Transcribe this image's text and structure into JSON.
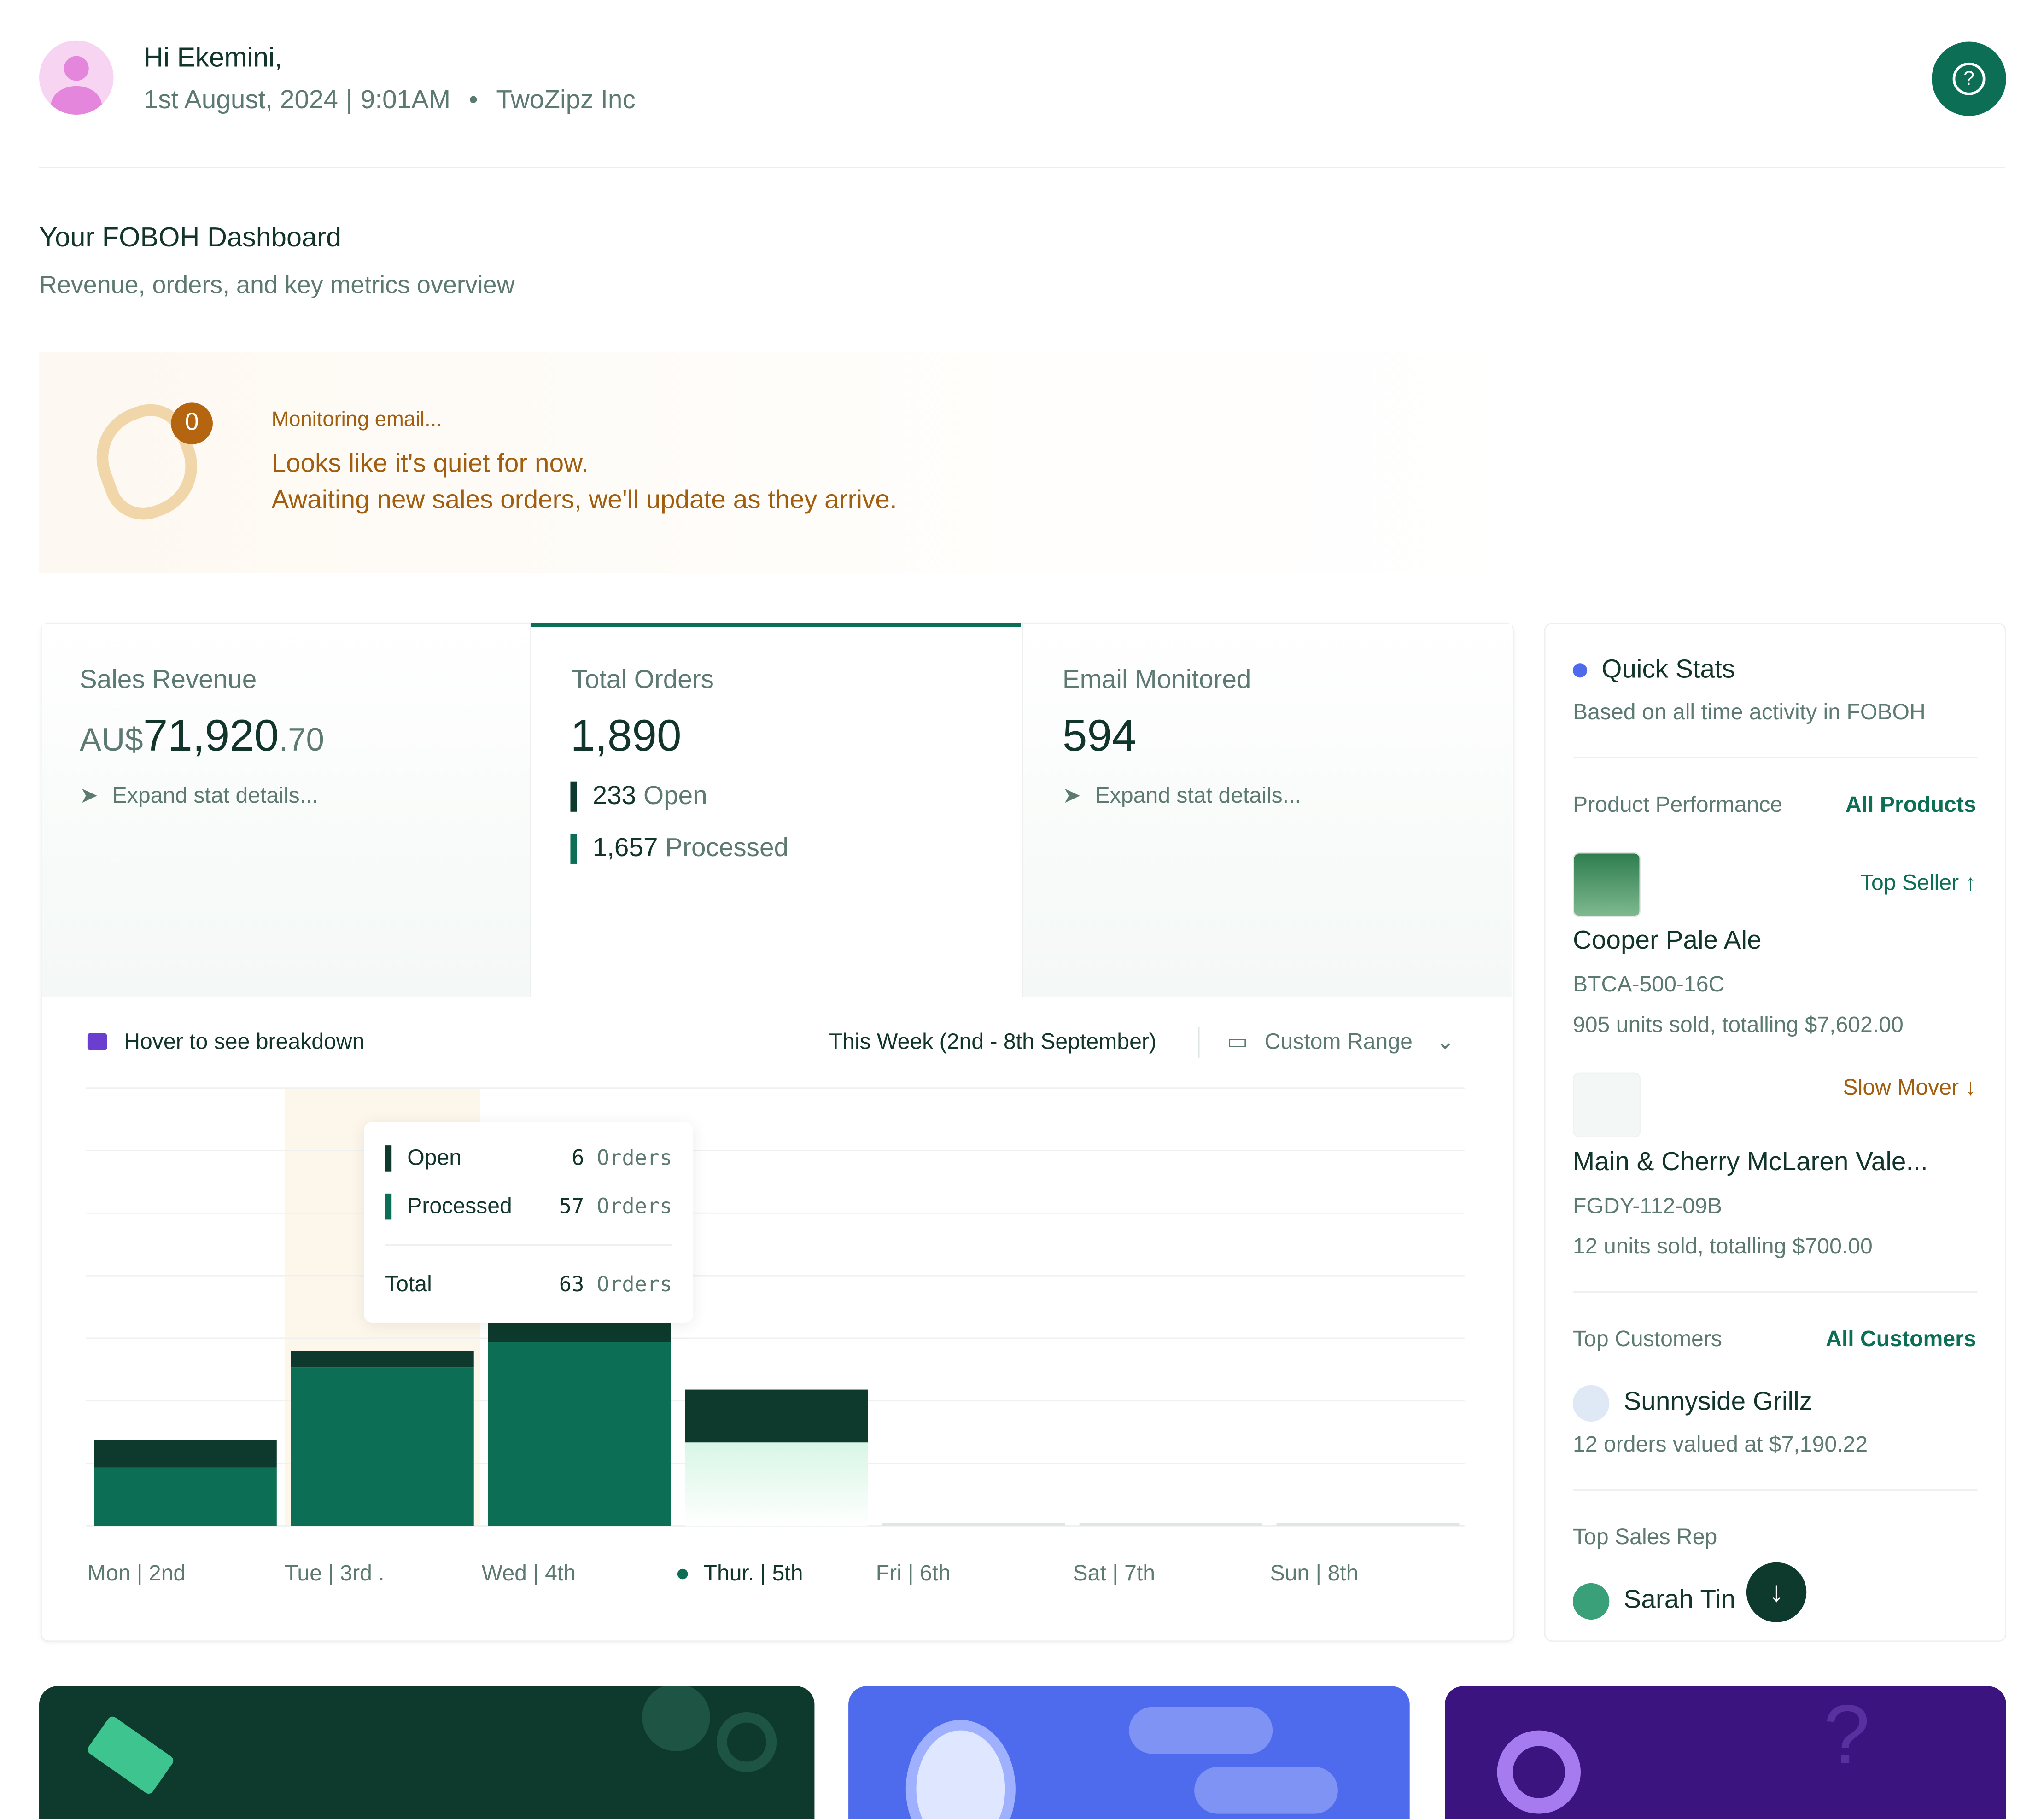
{
  "header": {
    "greeting": "Hi Ekemini,",
    "date": "1st August, 2024",
    "time": "9:01AM",
    "company": "TwoZipz Inc"
  },
  "dashboard": {
    "title": "Your FOBOH Dashboard",
    "subtitle": "Revenue, orders, and key metrics overview"
  },
  "banner": {
    "badge": "0",
    "status": "Monitoring email...",
    "line1": "Looks like it's quiet for now.",
    "line2": "Awaiting new sales orders, we'll update as they arrive."
  },
  "stats": [
    {
      "label": "Sales Revenue",
      "currency": "AU$",
      "value": "71,920",
      "decimals": ".70",
      "action": "Expand stat details..."
    },
    {
      "label": "Total Orders",
      "value": "1,890",
      "open_count": "233",
      "open_label": "Open",
      "processed_count": "1,657",
      "processed_label": "Processed"
    },
    {
      "label": "Email Monitored",
      "value": "594",
      "action": "Expand stat details..."
    }
  ],
  "chart_controls": {
    "hint": "Hover to see breakdown",
    "period": "This Week (2nd - 8th September)",
    "range": "Custom Range"
  },
  "tooltip": {
    "total_label": "Total",
    "total": "63",
    "unit": "Orders"
  },
  "chart_data": {
    "type": "bar",
    "stacked": true,
    "categories": [
      "Mon | 2nd",
      "Tue | 3rd .",
      "Wed | 4th",
      "Thur. | 5th",
      "Fri | 6th",
      "Sat | 7th",
      "Sun | 8th"
    ],
    "series": [
      {
        "name": "Open",
        "color": "#0e3a2d",
        "values": [
          10,
          6,
          7,
          19,
          0,
          0,
          0
        ]
      },
      {
        "name": "Processed",
        "color": "#0b6e55",
        "values": [
          21,
          57,
          66,
          30,
          0,
          0,
          0
        ]
      }
    ],
    "ylim": [
      0,
      157.5
    ],
    "yticks": [
      0,
      22.5,
      45,
      67.5,
      90,
      112.5,
      135,
      157.5
    ],
    "grid": true
  },
  "quick_stats": {
    "title": "Quick Stats",
    "subtitle": "Based on all time activity in FOBOH",
    "products_heading": "Product Performance",
    "products_link": "All Products",
    "products": [
      {
        "tag": "Top Seller",
        "name": "Cooper Pale Ale",
        "sku": "BTCA-500-16C",
        "summary": "905 units sold, totalling $7,602.00"
      },
      {
        "tag": "Slow Mover",
        "name": "Main & Cherry McLaren Vale...",
        "sku": "FGDY-112-09B",
        "summary": "12 units sold, totalling $700.00"
      }
    ],
    "customers_heading": "Top Customers",
    "customers_link": "All Customers",
    "customer": {
      "name": "Sunnyside Grillz",
      "summary": "12 orders valued at $7,190.22"
    },
    "rep_heading": "Top Sales Rep",
    "rep": {
      "name": "Sarah Tin"
    }
  }
}
